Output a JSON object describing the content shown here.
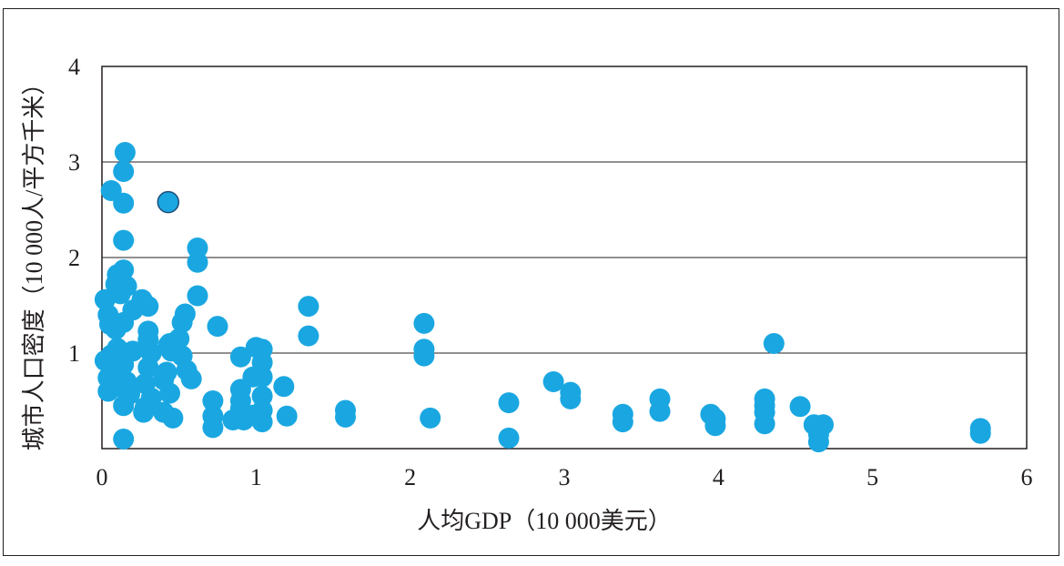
{
  "chart_data": {
    "type": "scatter",
    "title": "",
    "xlabel": "人均GDP（10 000美元）",
    "ylabel": "城市人口密度（10 000人/平方千米）",
    "xlim": [
      0,
      6
    ],
    "ylim": [
      0,
      4
    ],
    "xticks": [
      "0",
      "1",
      "2",
      "3",
      "4",
      "5",
      "6"
    ],
    "yticks": [
      "0",
      "1",
      "2",
      "3",
      "4"
    ],
    "grid": "horizontal",
    "legend": "none",
    "colors": {
      "point": "#1aa7e1",
      "highlight_point_stroke": "#1f4d7a",
      "axis": "#231f20",
      "grid": "#231f20"
    },
    "points": [
      [
        0.15,
        3.1
      ],
      [
        0.14,
        2.9
      ],
      [
        0.06,
        2.7
      ],
      [
        0.14,
        2.57
      ],
      [
        0.43,
        2.58
      ],
      [
        0.14,
        2.18
      ],
      [
        0.62,
        2.1
      ],
      [
        0.62,
        1.95
      ],
      [
        0.14,
        1.87
      ],
      [
        0.1,
        1.82
      ],
      [
        0.09,
        1.72
      ],
      [
        0.16,
        1.7
      ],
      [
        0.02,
        1.56
      ],
      [
        0.12,
        1.62
      ],
      [
        0.26,
        1.56
      ],
      [
        0.3,
        1.49
      ],
      [
        0.62,
        1.6
      ],
      [
        0.54,
        1.41
      ],
      [
        0.52,
        1.32
      ],
      [
        0.05,
        1.3
      ],
      [
        0.09,
        1.25
      ],
      [
        0.3,
        1.23
      ],
      [
        0.3,
        1.14
      ],
      [
        0.5,
        1.15
      ],
      [
        0.44,
        1.1
      ],
      [
        0.04,
        1.4
      ],
      [
        0.2,
        1.45
      ],
      [
        0.14,
        1.32
      ],
      [
        0.75,
        1.28
      ],
      [
        0.43,
        1.08
      ],
      [
        0.1,
        1.05
      ],
      [
        0.2,
        1.02
      ],
      [
        0.32,
        1.0
      ],
      [
        0.45,
        1.02
      ],
      [
        0.52,
        0.97
      ],
      [
        0.06,
        0.98
      ],
      [
        0.02,
        0.92
      ],
      [
        0.14,
        0.88
      ],
      [
        0.3,
        0.85
      ],
      [
        0.42,
        0.8
      ],
      [
        0.55,
        0.82
      ],
      [
        0.08,
        0.78
      ],
      [
        0.04,
        0.74
      ],
      [
        0.16,
        0.7
      ],
      [
        0.28,
        0.68
      ],
      [
        0.4,
        0.72
      ],
      [
        0.58,
        0.73
      ],
      [
        0.1,
        0.65
      ],
      [
        0.04,
        0.6
      ],
      [
        0.18,
        0.57
      ],
      [
        0.32,
        0.53
      ],
      [
        0.44,
        0.58
      ],
      [
        0.14,
        0.45
      ],
      [
        0.28,
        0.43
      ],
      [
        0.4,
        0.38
      ],
      [
        0.46,
        0.32
      ],
      [
        0.27,
        0.38
      ],
      [
        0.14,
        0.1
      ],
      [
        0.72,
        0.5
      ],
      [
        0.72,
        0.34
      ],
      [
        0.72,
        0.22
      ],
      [
        0.85,
        0.3
      ],
      [
        0.9,
        0.62
      ],
      [
        0.9,
        0.5
      ],
      [
        0.9,
        0.42
      ],
      [
        0.92,
        0.3
      ],
      [
        0.9,
        0.96
      ],
      [
        1.0,
        1.06
      ],
      [
        1.04,
        1.04
      ],
      [
        1.04,
        0.9
      ],
      [
        1.04,
        0.75
      ],
      [
        1.04,
        0.55
      ],
      [
        1.04,
        0.4
      ],
      [
        1.04,
        0.28
      ],
      [
        0.98,
        0.75
      ],
      [
        0.98,
        0.35
      ],
      [
        1.18,
        0.65
      ],
      [
        1.2,
        0.34
      ],
      [
        1.34,
        1.49
      ],
      [
        1.34,
        1.18
      ],
      [
        1.58,
        0.4
      ],
      [
        1.58,
        0.33
      ],
      [
        2.09,
        1.31
      ],
      [
        2.09,
        1.04
      ],
      [
        2.09,
        0.97
      ],
      [
        2.13,
        0.32
      ],
      [
        2.64,
        0.48
      ],
      [
        2.64,
        0.11
      ],
      [
        2.93,
        0.7
      ],
      [
        3.04,
        0.59
      ],
      [
        3.04,
        0.52
      ],
      [
        3.38,
        0.36
      ],
      [
        3.38,
        0.28
      ],
      [
        3.62,
        0.52
      ],
      [
        3.62,
        0.39
      ],
      [
        3.95,
        0.36
      ],
      [
        3.98,
        0.31
      ],
      [
        3.98,
        0.24
      ],
      [
        4.3,
        0.52
      ],
      [
        4.3,
        0.45
      ],
      [
        4.3,
        0.38
      ],
      [
        4.3,
        0.26
      ],
      [
        4.36,
        1.1
      ],
      [
        4.53,
        0.44
      ],
      [
        4.62,
        0.25
      ],
      [
        4.65,
        0.15
      ],
      [
        4.65,
        0.07
      ],
      [
        4.68,
        0.25
      ],
      [
        5.7,
        0.21
      ],
      [
        5.7,
        0.16
      ]
    ],
    "highlight_points": [
      [
        0.43,
        2.58
      ]
    ]
  }
}
